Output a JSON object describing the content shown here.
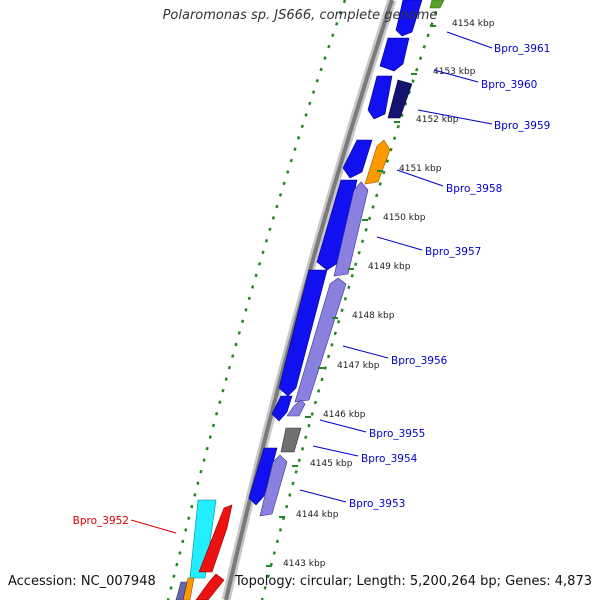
{
  "title": "Polaromonas sp. JS666, complete genome",
  "footer": {
    "accession": "Accession: NC_007948",
    "summary": "Topology: circular; Length: 5,200,264 bp; Genes: 4,873"
  },
  "ticks": [
    "4154 kbp",
    "4153 kbp",
    "4152 kbp",
    "4151 kbp",
    "4150 kbp",
    "4149 kbp",
    "4148 kbp",
    "4147 kbp",
    "4146 kbp",
    "4145 kbp",
    "4144 kbp",
    "4143 kbp"
  ],
  "genes": [
    {
      "name": "Bpro_3961",
      "color": "#0000cc"
    },
    {
      "name": "Bpro_3960",
      "color": "#0000cc"
    },
    {
      "name": "Bpro_3959",
      "color": "#0000cc"
    },
    {
      "name": "Bpro_3958",
      "color": "#0000cc"
    },
    {
      "name": "Bpro_3957",
      "color": "#0000cc"
    },
    {
      "name": "Bpro_3956",
      "color": "#0000cc"
    },
    {
      "name": "Bpro_3955",
      "color": "#0000cc"
    },
    {
      "name": "Bpro_3954",
      "color": "#0000cc"
    },
    {
      "name": "Bpro_3953",
      "color": "#0000cc"
    },
    {
      "name": "Bpro_3952",
      "color": "#dd0000"
    }
  ],
  "colors": {
    "gene_blue": "#1010f0",
    "gene_lavender": "#8a80e0",
    "gene_navy": "#141470",
    "gene_orange": "#ff9900",
    "gene_gray": "#707070",
    "gene_cyan": "#22eeff",
    "gene_red": "#ee1111",
    "gc_green": "#228822"
  }
}
